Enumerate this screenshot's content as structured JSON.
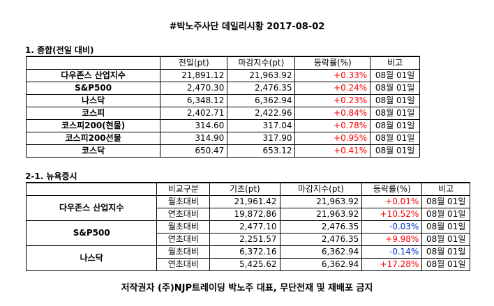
{
  "title": "#박노주사단 데일리시황 2017-08-02",
  "section1": {
    "label": "1. 종합(전일 대비)",
    "headers": [
      "",
      "전일(pt)",
      "마감지수(pt)",
      "등락률(%)",
      "비고"
    ],
    "rows": [
      {
        "name": "다우존스 산업지수",
        "prev": "21,891.12",
        "close": "21,963.92",
        "change": "+0.33%",
        "note": "08월 01일"
      },
      {
        "name": "S&P500",
        "prev": "2,470.30",
        "close": "2,476.35",
        "change": "+0.24%",
        "note": "08월 01일"
      },
      {
        "name": "나스닥",
        "prev": "6,348.12",
        "close": "6,362.94",
        "change": "+0.23%",
        "note": "08월 01일"
      },
      {
        "name": "코스피",
        "prev": "2,402.71",
        "close": "2,422.96",
        "change": "+0.84%",
        "note": "08월 01일"
      },
      {
        "name": "코스피200(현물)",
        "prev": "314.60",
        "close": "317.04",
        "change": "+0.78%",
        "note": "08월 01일"
      },
      {
        "name": "코스피200선물",
        "prev": "314.90",
        "close": "317.90",
        "change": "+0.95%",
        "note": "08월 01일"
      },
      {
        "name": "코스닥",
        "prev": "650.47",
        "close": "653.12",
        "change": "+0.41%",
        "note": "08월 01일"
      }
    ]
  },
  "section2": {
    "label": "2-1. 뉴욕증시",
    "headers": [
      "",
      "비교구분",
      "기초(pt)",
      "마감지수(pt)",
      "등락률(%)",
      "비고"
    ],
    "groups": [
      {
        "name": "다우존스 산업지수",
        "rows": [
          {
            "type": "월초대비",
            "base": "21,961.42",
            "close": "21,963.92",
            "change": "+0.01%",
            "note": "08월 01일"
          },
          {
            "type": "연초대비",
            "base": "19,872.86",
            "close": "21,963.92",
            "change": "+10.52%",
            "note": "08월 01일"
          }
        ]
      },
      {
        "name": "S&P500",
        "rows": [
          {
            "type": "월초대비",
            "base": "2,477.10",
            "close": "2,476.35",
            "change": "-0.03%",
            "note": "08월 01일"
          },
          {
            "type": "연초대비",
            "base": "2,251.57",
            "close": "2,476.35",
            "change": "+9.98%",
            "note": "08월 01일"
          }
        ]
      },
      {
        "name": "나스닥",
        "rows": [
          {
            "type": "월초대비",
            "base": "6,372.16",
            "close": "6,362.94",
            "change": "-0.14%",
            "note": "08월 01일"
          },
          {
            "type": "연초대비",
            "base": "5,425.62",
            "close": "6,362.94",
            "change": "+17.28%",
            "note": "08월 01일"
          }
        ]
      }
    ]
  },
  "footer": "저작권자 (주)NJP트레이딩 박노주 대표, 무단전재 및 재배포 금지",
  "colors": {
    "up": "#ff0000",
    "down": "#0033cc"
  }
}
